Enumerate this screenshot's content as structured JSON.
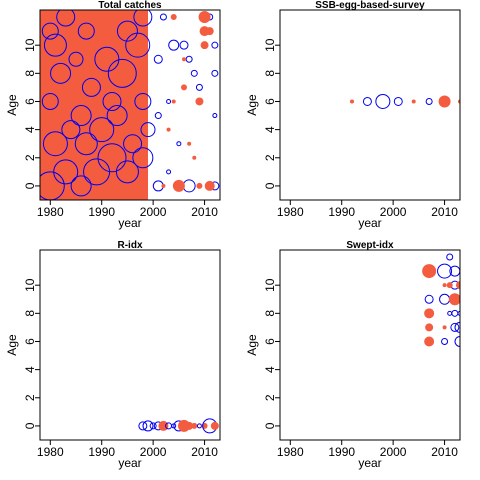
{
  "colors": {
    "positive": "#F45C40",
    "negative": "#0000F0",
    "axis": "#000000"
  },
  "chart_data": [
    {
      "type": "scatter",
      "title": "Total catches",
      "xlabel": "year",
      "ylabel": "Age",
      "xlim": [
        1978,
        2013
      ],
      "ylim": [
        -1,
        12.5
      ],
      "xticks": [
        1980,
        1990,
        2000,
        2010
      ],
      "yticks": [
        0,
        2,
        4,
        6,
        8,
        10
      ],
      "grid": false,
      "points": [
        {
          "x": 1980,
          "y": 0,
          "r": 14,
          "s": "neg"
        },
        {
          "x": 1983,
          "y": 1,
          "r": 12,
          "s": "neg"
        },
        {
          "x": 1986,
          "y": 0,
          "r": 10,
          "s": "neg"
        },
        {
          "x": 1989,
          "y": 1,
          "r": 13,
          "s": "neg"
        },
        {
          "x": 1992,
          "y": 2,
          "r": 14,
          "s": "neg"
        },
        {
          "x": 1995,
          "y": 1,
          "r": 11,
          "s": "neg"
        },
        {
          "x": 1981,
          "y": 3,
          "r": 12,
          "s": "neg"
        },
        {
          "x": 1984,
          "y": 4,
          "r": 9,
          "s": "neg"
        },
        {
          "x": 1987,
          "y": 3,
          "r": 11,
          "s": "neg"
        },
        {
          "x": 1990,
          "y": 4,
          "r": 12,
          "s": "neg"
        },
        {
          "x": 1993,
          "y": 5,
          "r": 10,
          "s": "neg"
        },
        {
          "x": 1996,
          "y": 3,
          "r": 9,
          "s": "neg"
        },
        {
          "x": 1980,
          "y": 6,
          "r": 8,
          "s": "neg"
        },
        {
          "x": 1982,
          "y": 8,
          "r": 10,
          "s": "neg"
        },
        {
          "x": 1985,
          "y": 9,
          "r": 7,
          "s": "neg"
        },
        {
          "x": 1988,
          "y": 7,
          "r": 9,
          "s": "neg"
        },
        {
          "x": 1991,
          "y": 9,
          "r": 12,
          "s": "neg"
        },
        {
          "x": 1994,
          "y": 8,
          "r": 14,
          "s": "neg"
        },
        {
          "x": 1997,
          "y": 10,
          "r": 12,
          "s": "neg"
        },
        {
          "x": 1980,
          "y": 11,
          "r": 8,
          "s": "neg"
        },
        {
          "x": 1983,
          "y": 12,
          "r": 9,
          "s": "neg"
        },
        {
          "x": 1995,
          "y": 11,
          "r": 10,
          "s": "neg"
        },
        {
          "x": 1998,
          "y": 12,
          "r": 9,
          "s": "neg"
        },
        {
          "x": 1998,
          "y": 6,
          "r": 8,
          "s": "neg"
        },
        {
          "x": 1998,
          "y": 2,
          "r": 10,
          "s": "neg"
        },
        {
          "x": 1999,
          "y": 4,
          "r": 7,
          "s": "neg"
        },
        {
          "x": 1981,
          "y": 10,
          "r": 11,
          "s": "neg"
        },
        {
          "x": 1987,
          "y": 11,
          "r": 8,
          "s": "neg"
        },
        {
          "x": 1992,
          "y": 6,
          "r": 9,
          "s": "neg"
        },
        {
          "x": 1986,
          "y": 5,
          "r": 10,
          "s": "neg"
        },
        {
          "x": 2001,
          "y": 0,
          "r": 5,
          "s": "neg"
        },
        {
          "x": 2001,
          "y": 5,
          "r": 3,
          "s": "neg"
        },
        {
          "x": 2001,
          "y": 9,
          "r": 4,
          "s": "neg"
        },
        {
          "x": 2002,
          "y": 12,
          "r": 3,
          "s": "neg"
        },
        {
          "x": 2003,
          "y": 1,
          "r": 2,
          "s": "neg"
        },
        {
          "x": 2004,
          "y": 10,
          "r": 5,
          "s": "neg"
        },
        {
          "x": 2006,
          "y": 10,
          "r": 4,
          "s": "neg"
        },
        {
          "x": 2007,
          "y": 0,
          "r": 6,
          "s": "neg"
        },
        {
          "x": 2007,
          "y": 9,
          "r": 3,
          "s": "neg"
        },
        {
          "x": 2008,
          "y": 8,
          "r": 3,
          "s": "neg"
        },
        {
          "x": 2009,
          "y": 7,
          "r": 3,
          "s": "neg"
        },
        {
          "x": 2011,
          "y": 12,
          "r": 3,
          "s": "neg"
        },
        {
          "x": 2012,
          "y": 0,
          "r": 4,
          "s": "neg"
        },
        {
          "x": 2012,
          "y": 5,
          "r": 2,
          "s": "neg"
        },
        {
          "x": 2012,
          "y": 8,
          "r": 3,
          "s": "neg"
        },
        {
          "x": 2012,
          "y": 10,
          "r": 3,
          "s": "neg"
        },
        {
          "x": 2003,
          "y": 6,
          "r": 2,
          "s": "neg"
        },
        {
          "x": 2005,
          "y": 3,
          "r": 2,
          "s": "neg"
        },
        {
          "x": 2002,
          "y": 0,
          "r": 2,
          "s": "pos"
        },
        {
          "x": 2003,
          "y": 4,
          "r": 2,
          "s": "pos"
        },
        {
          "x": 2004,
          "y": 6,
          "r": 2,
          "s": "pos"
        },
        {
          "x": 2004,
          "y": 12,
          "r": 3,
          "s": "pos"
        },
        {
          "x": 2005,
          "y": 0,
          "r": 6,
          "s": "pos"
        },
        {
          "x": 2006,
          "y": 7,
          "r": 3,
          "s": "pos"
        },
        {
          "x": 2008,
          "y": 2,
          "r": 2,
          "s": "pos"
        },
        {
          "x": 2009,
          "y": 0,
          "r": 3,
          "s": "pos"
        },
        {
          "x": 2009,
          "y": 6,
          "r": 4,
          "s": "pos"
        },
        {
          "x": 2010,
          "y": 12,
          "r": 6,
          "s": "pos"
        },
        {
          "x": 2010,
          "y": 11,
          "r": 5,
          "s": "pos"
        },
        {
          "x": 2010,
          "y": 10,
          "r": 4,
          "s": "pos"
        },
        {
          "x": 2011,
          "y": 0,
          "r": 5,
          "s": "pos"
        },
        {
          "x": 2011,
          "y": 11,
          "r": 4,
          "s": "pos"
        },
        {
          "x": 2006,
          "y": 9,
          "r": 2,
          "s": "pos"
        },
        {
          "x": 2007,
          "y": 3,
          "r": 2,
          "s": "pos"
        }
      ],
      "fills": [
        {
          "x0": 1978,
          "x1": 1999,
          "y0": -1,
          "y1": 12.5,
          "s": "pos"
        }
      ]
    },
    {
      "type": "scatter",
      "title": "SSB-egg-based-survey",
      "xlabel": "year",
      "ylabel": "Age",
      "xlim": [
        1978,
        2013
      ],
      "ylim": [
        -1,
        12.5
      ],
      "xticks": [
        1980,
        1990,
        2000,
        2010
      ],
      "yticks": [
        0,
        2,
        4,
        6,
        8,
        10
      ],
      "grid": false,
      "points": [
        {
          "x": 1992,
          "y": 6,
          "r": 2,
          "s": "pos"
        },
        {
          "x": 1995,
          "y": 6,
          "r": 4,
          "s": "neg"
        },
        {
          "x": 1998,
          "y": 6,
          "r": 7,
          "s": "neg"
        },
        {
          "x": 2001,
          "y": 6,
          "r": 4,
          "s": "neg"
        },
        {
          "x": 2004,
          "y": 6,
          "r": 2,
          "s": "pos"
        },
        {
          "x": 2007,
          "y": 6,
          "r": 3,
          "s": "neg"
        },
        {
          "x": 2010,
          "y": 6,
          "r": 6,
          "s": "pos"
        },
        {
          "x": 2013,
          "y": 6,
          "r": 2,
          "s": "pos"
        }
      ],
      "fills": []
    },
    {
      "type": "scatter",
      "title": "R-idx",
      "xlabel": "year",
      "ylabel": "Age",
      "xlim": [
        1978,
        2013
      ],
      "ylim": [
        -1,
        12.5
      ],
      "xticks": [
        1980,
        1990,
        2000,
        2010
      ],
      "yticks": [
        0,
        2,
        4,
        6,
        8,
        10
      ],
      "grid": false,
      "points": [
        {
          "x": 1998,
          "y": 0,
          "r": 4,
          "s": "neg"
        },
        {
          "x": 1999,
          "y": 0,
          "r": 5,
          "s": "neg"
        },
        {
          "x": 2000,
          "y": 0,
          "r": 3,
          "s": "neg"
        },
        {
          "x": 2001,
          "y": 0,
          "r": 4,
          "s": "neg"
        },
        {
          "x": 2002,
          "y": 0,
          "r": 5,
          "s": "pos"
        },
        {
          "x": 2003,
          "y": 0,
          "r": 3,
          "s": "neg"
        },
        {
          "x": 2004,
          "y": 0,
          "r": 2,
          "s": "neg"
        },
        {
          "x": 2005,
          "y": 0,
          "r": 5,
          "s": "neg"
        },
        {
          "x": 2006,
          "y": 0,
          "r": 6,
          "s": "pos"
        },
        {
          "x": 2007,
          "y": 0,
          "r": 4,
          "s": "pos"
        },
        {
          "x": 2008,
          "y": 0,
          "r": 3,
          "s": "pos"
        },
        {
          "x": 2009,
          "y": 0,
          "r": 2,
          "s": "neg"
        },
        {
          "x": 2010,
          "y": 0,
          "r": 3,
          "s": "pos"
        },
        {
          "x": 2011,
          "y": 0,
          "r": 7,
          "s": "neg"
        },
        {
          "x": 2012,
          "y": 0,
          "r": 4,
          "s": "pos"
        }
      ],
      "fills": []
    },
    {
      "type": "scatter",
      "title": "Swept-idx",
      "xlabel": "year",
      "ylabel": "Age",
      "xlim": [
        1978,
        2013
      ],
      "ylim": [
        -1,
        12.5
      ],
      "xticks": [
        1980,
        1990,
        2000,
        2010
      ],
      "yticks": [
        0,
        2,
        4,
        6,
        8,
        10
      ],
      "grid": false,
      "points": [
        {
          "x": 2007,
          "y": 11,
          "r": 7,
          "s": "pos"
        },
        {
          "x": 2007,
          "y": 9,
          "r": 4,
          "s": "neg"
        },
        {
          "x": 2007,
          "y": 8,
          "r": 5,
          "s": "pos"
        },
        {
          "x": 2007,
          "y": 7,
          "r": 4,
          "s": "pos"
        },
        {
          "x": 2007,
          "y": 6,
          "r": 5,
          "s": "pos"
        },
        {
          "x": 2010,
          "y": 11,
          "r": 7,
          "s": "neg"
        },
        {
          "x": 2010,
          "y": 10,
          "r": 2,
          "s": "pos"
        },
        {
          "x": 2010,
          "y": 9,
          "r": 5,
          "s": "neg"
        },
        {
          "x": 2010,
          "y": 7,
          "r": 2,
          "s": "pos"
        },
        {
          "x": 2010,
          "y": 6,
          "r": 3,
          "s": "neg"
        },
        {
          "x": 2011,
          "y": 12,
          "r": 3,
          "s": "neg"
        },
        {
          "x": 2011,
          "y": 8,
          "r": 2,
          "s": "neg"
        },
        {
          "x": 2012,
          "y": 11,
          "r": 5,
          "s": "neg"
        },
        {
          "x": 2012,
          "y": 10,
          "r": 4,
          "s": "neg"
        },
        {
          "x": 2012,
          "y": 9,
          "r": 6,
          "s": "pos"
        },
        {
          "x": 2012,
          "y": 8,
          "r": 3,
          "s": "neg"
        },
        {
          "x": 2012,
          "y": 7,
          "r": 4,
          "s": "neg"
        },
        {
          "x": 2013,
          "y": 10,
          "r": 4,
          "s": "pos"
        },
        {
          "x": 2013,
          "y": 9,
          "r": 4,
          "s": "pos"
        },
        {
          "x": 2013,
          "y": 8,
          "r": 2,
          "s": "neg"
        },
        {
          "x": 2013,
          "y": 7,
          "r": 5,
          "s": "neg"
        },
        {
          "x": 2013,
          "y": 6,
          "r": 5,
          "s": "neg"
        },
        {
          "x": 2011,
          "y": 10,
          "r": 3,
          "s": "pos"
        }
      ],
      "fills": []
    }
  ]
}
